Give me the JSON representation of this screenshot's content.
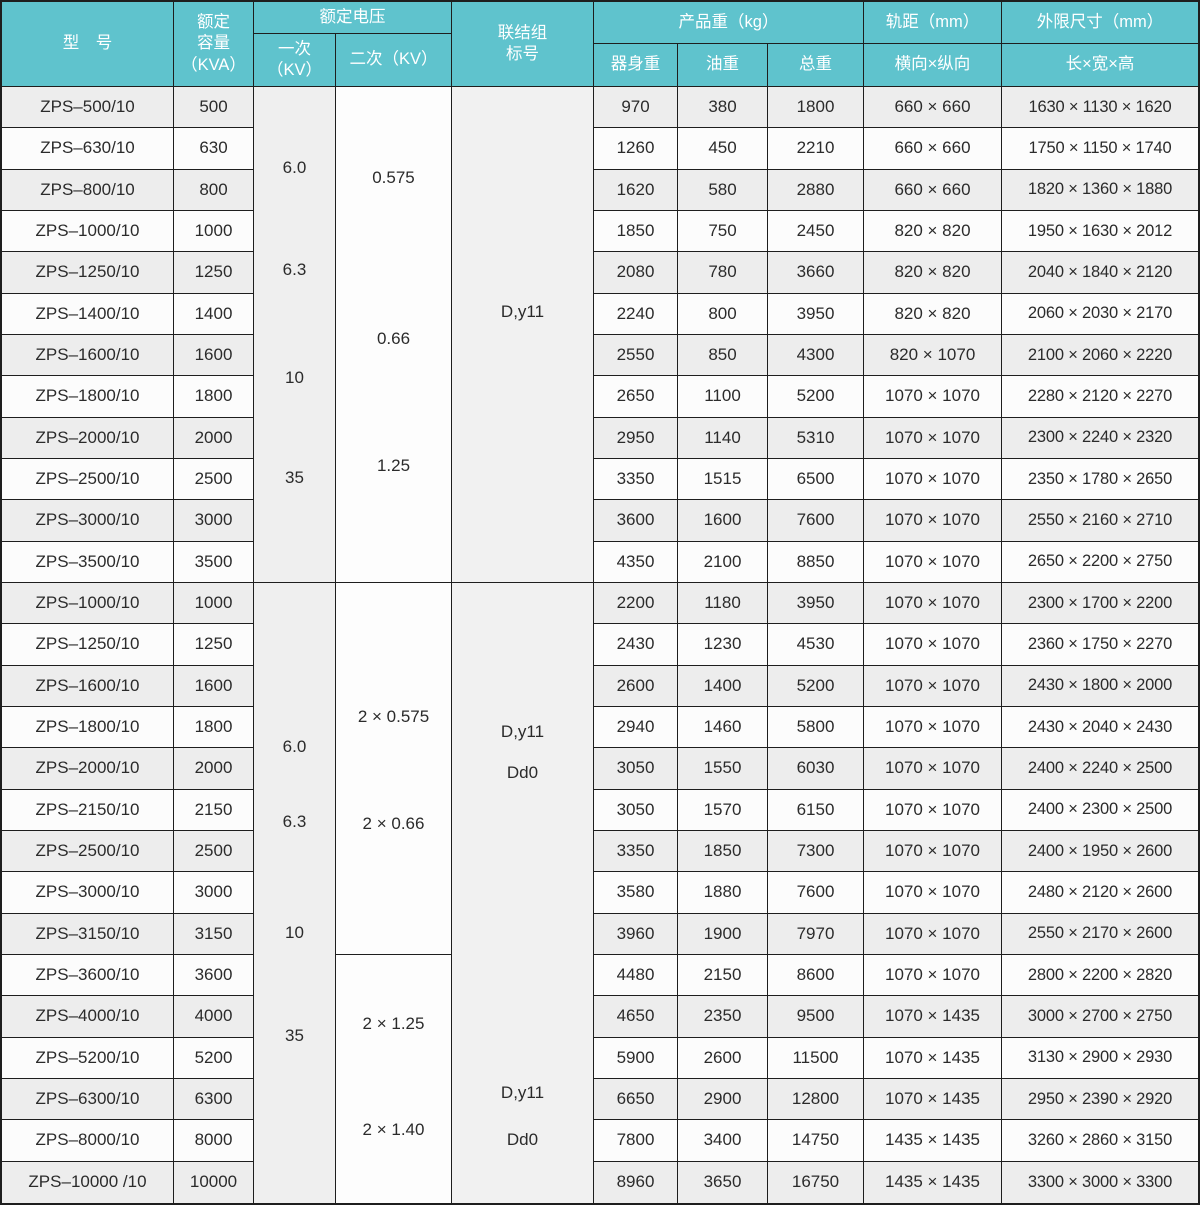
{
  "header": {
    "model": "型　号",
    "capacity": "额定\n容量\n（KVA）",
    "voltage_group": "额定电压",
    "primary": "一次\n（KV）",
    "secondary": "二次（KV）",
    "connection": "联结组\n标号",
    "weight_group": "产品重（kg）",
    "body_weight": "器身重",
    "oil_weight": "油重",
    "total_weight": "总重",
    "gauge_group": "轨距（mm）",
    "gauge_sub": "横向×纵向",
    "dim_group": "外限尺寸（mm）",
    "dim_sub": "长×宽×高"
  },
  "merged": {
    "section1": {
      "primary": [
        "6.0",
        "6.3",
        "10",
        "35"
      ],
      "secondary": [
        "0.575",
        "0.66",
        "1.25"
      ],
      "connection": [
        "D,y11"
      ]
    },
    "section2": {
      "primary": [
        "6.0",
        "6.3",
        "10",
        "35"
      ],
      "secondary_a": [
        "2 × 0.575",
        "2 × 0.66"
      ],
      "secondary_b": [
        "2 × 1.25",
        "2 × 1.40"
      ],
      "connection": [
        "D,y11",
        "Dd0",
        "D,y11",
        "Dd0"
      ]
    }
  },
  "rows": [
    {
      "model": "ZPS–500/10",
      "capacity": "500",
      "body": "970",
      "oil": "380",
      "total": "1800",
      "gauge": "660 × 660",
      "dims": "1630 × 1130 × 1620"
    },
    {
      "model": "ZPS–630/10",
      "capacity": "630",
      "body": "1260",
      "oil": "450",
      "total": "2210",
      "gauge": "660 × 660",
      "dims": "1750 × 1150 × 1740"
    },
    {
      "model": "ZPS–800/10",
      "capacity": "800",
      "body": "1620",
      "oil": "580",
      "total": "2880",
      "gauge": "660 × 660",
      "dims": "1820 × 1360 × 1880"
    },
    {
      "model": "ZPS–1000/10",
      "capacity": "1000",
      "body": "1850",
      "oil": "750",
      "total": "2450",
      "gauge": "820 × 820",
      "dims": "1950 × 1630 × 2012"
    },
    {
      "model": "ZPS–1250/10",
      "capacity": "1250",
      "body": "2080",
      "oil": "780",
      "total": "3660",
      "gauge": "820 × 820",
      "dims": "2040 × 1840 × 2120"
    },
    {
      "model": "ZPS–1400/10",
      "capacity": "1400",
      "body": "2240",
      "oil": "800",
      "total": "3950",
      "gauge": "820 × 820",
      "dims": "2060 × 2030 × 2170"
    },
    {
      "model": "ZPS–1600/10",
      "capacity": "1600",
      "body": "2550",
      "oil": "850",
      "total": "4300",
      "gauge": "820 × 1070",
      "dims": "2100 × 2060 × 2220"
    },
    {
      "model": "ZPS–1800/10",
      "capacity": "1800",
      "body": "2650",
      "oil": "1100",
      "total": "5200",
      "gauge": "1070 × 1070",
      "dims": "2280 × 2120 × 2270"
    },
    {
      "model": "ZPS–2000/10",
      "capacity": "2000",
      "body": "2950",
      "oil": "1140",
      "total": "5310",
      "gauge": "1070 × 1070",
      "dims": "2300 × 2240 × 2320"
    },
    {
      "model": "ZPS–2500/10",
      "capacity": "2500",
      "body": "3350",
      "oil": "1515",
      "total": "6500",
      "gauge": "1070 × 1070",
      "dims": "2350 × 1780 × 2650"
    },
    {
      "model": "ZPS–3000/10",
      "capacity": "3000",
      "body": "3600",
      "oil": "1600",
      "total": "7600",
      "gauge": "1070 × 1070",
      "dims": "2550 × 2160 × 2710"
    },
    {
      "model": "ZPS–3500/10",
      "capacity": "3500",
      "body": "4350",
      "oil": "2100",
      "total": "8850",
      "gauge": "1070 × 1070",
      "dims": "2650 × 2200 × 2750"
    },
    {
      "model": "ZPS–1000/10",
      "capacity": "1000",
      "body": "2200",
      "oil": "1180",
      "total": "3950",
      "gauge": "1070 × 1070",
      "dims": "2300 × 1700 × 2200"
    },
    {
      "model": "ZPS–1250/10",
      "capacity": "1250",
      "body": "2430",
      "oil": "1230",
      "total": "4530",
      "gauge": "1070 × 1070",
      "dims": "2360 × 1750 × 2270"
    },
    {
      "model": "ZPS–1600/10",
      "capacity": "1600",
      "body": "2600",
      "oil": "1400",
      "total": "5200",
      "gauge": "1070 × 1070",
      "dims": "2430 × 1800 × 2000"
    },
    {
      "model": "ZPS–1800/10",
      "capacity": "1800",
      "body": "2940",
      "oil": "1460",
      "total": "5800",
      "gauge": "1070 × 1070",
      "dims": "2430 × 2040 × 2430"
    },
    {
      "model": "ZPS–2000/10",
      "capacity": "2000",
      "body": "3050",
      "oil": "1550",
      "total": "6030",
      "gauge": "1070 × 1070",
      "dims": "2400 × 2240 × 2500"
    },
    {
      "model": "ZPS–2150/10",
      "capacity": "2150",
      "body": "3050",
      "oil": "1570",
      "total": "6150",
      "gauge": "1070 × 1070",
      "dims": "2400 × 2300 × 2500"
    },
    {
      "model": "ZPS–2500/10",
      "capacity": "2500",
      "body": "3350",
      "oil": "1850",
      "total": "7300",
      "gauge": "1070 × 1070",
      "dims": "2400 × 1950 × 2600"
    },
    {
      "model": "ZPS–3000/10",
      "capacity": "3000",
      "body": "3580",
      "oil": "1880",
      "total": "7600",
      "gauge": "1070 × 1070",
      "dims": "2480 × 2120 × 2600"
    },
    {
      "model": "ZPS–3150/10",
      "capacity": "3150",
      "body": "3960",
      "oil": "1900",
      "total": "7970",
      "gauge": "1070 × 1070",
      "dims": "2550 × 2170 × 2600"
    },
    {
      "model": "ZPS–3600/10",
      "capacity": "3600",
      "body": "4480",
      "oil": "2150",
      "total": "8600",
      "gauge": "1070 × 1070",
      "dims": "2800 × 2200 × 2820"
    },
    {
      "model": "ZPS–4000/10",
      "capacity": "4000",
      "body": "4650",
      "oil": "2350",
      "total": "9500",
      "gauge": "1070 × 1435",
      "dims": "3000 × 2700 × 2750"
    },
    {
      "model": "ZPS–5200/10",
      "capacity": "5200",
      "body": "5900",
      "oil": "2600",
      "total": "11500",
      "gauge": "1070 × 1435",
      "dims": "3130 × 2900 × 2930"
    },
    {
      "model": "ZPS–6300/10",
      "capacity": "6300",
      "body": "6650",
      "oil": "2900",
      "total": "12800",
      "gauge": "1070 × 1435",
      "dims": "2950 × 2390 × 2920"
    },
    {
      "model": "ZPS–8000/10",
      "capacity": "8000",
      "body": "7800",
      "oil": "3400",
      "total": "14750",
      "gauge": "1435 × 1435",
      "dims": "3260 × 2860 × 3150"
    },
    {
      "model": "ZPS–10000 /10",
      "capacity": "10000",
      "body": "8960",
      "oil": "3650",
      "total": "16750",
      "gauge": "1435 × 1435",
      "dims": "3300 × 3000 × 3300"
    }
  ],
  "colors": {
    "header_bg": "#5fc3cd",
    "header_text": "#ffffff",
    "border": "#1e1e1e",
    "text": "#2b2b2b",
    "row_odd": "#ededed",
    "row_even": "#fcfcfc"
  }
}
